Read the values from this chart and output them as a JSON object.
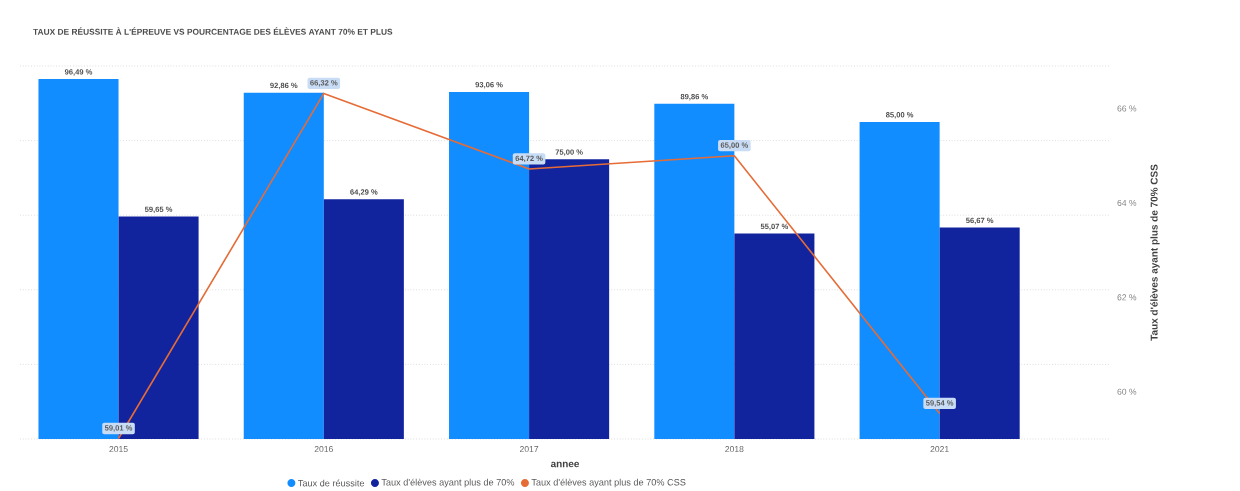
{
  "chart_data": {
    "type": "bar",
    "title": "TAUX DE RÉUSSITE À L'ÉPREUVE VS POURCENTAGE DES ÉLÈVES AYANT 70% ET PLUS",
    "xlabel": "annee",
    "y2label": "Taux d'élèves ayant plus de 70% CSS",
    "categories": [
      "2015",
      "2016",
      "2017",
      "2018",
      "2021"
    ],
    "series": [
      {
        "name": "Taux de réussite",
        "color": "#118dff",
        "values": [
          96.49,
          92.86,
          93.06,
          89.86,
          85.0
        ],
        "value_labels": [
          "96,49 %",
          "92,86 %",
          "93,06 %",
          "89,86 %",
          "85,00 %"
        ]
      },
      {
        "name": "Taux d'élèves ayant plus de 70%",
        "color": "#12239e",
        "values": [
          59.65,
          64.29,
          75.0,
          55.07,
          56.67
        ],
        "value_labels": [
          "59,65 %",
          "64,29 %",
          "75,00 %",
          "55,07 %",
          "56,67 %"
        ]
      },
      {
        "name": "Taux d'élèves ayant plus de 70% CSS",
        "type": "line",
        "axis": "y2",
        "color": "#e66c37",
        "values": [
          59.01,
          66.32,
          64.72,
          65.0,
          59.54
        ],
        "value_labels": [
          "59,01 %",
          "66,32 %",
          "64,72 %",
          "65,00 %",
          "59,54 %"
        ]
      }
    ],
    "ylim": [
      0,
      100
    ],
    "yticks": [
      {
        "value": 0,
        "label": null
      },
      {
        "value": 20,
        "label": null
      },
      {
        "value": 40,
        "label": null
      },
      {
        "value": 60,
        "label": null
      },
      {
        "value": 80,
        "label": null
      },
      {
        "value": 100,
        "label": null
      }
    ],
    "y2lim": [
      59,
      66.9
    ],
    "y2ticks": [
      {
        "value": 60,
        "label": "60 %"
      },
      {
        "value": 62,
        "label": "62 %"
      },
      {
        "value": 64,
        "label": "64 %"
      },
      {
        "value": 66,
        "label": "66 %"
      }
    ],
    "grid": "y",
    "legend": "bottom"
  }
}
